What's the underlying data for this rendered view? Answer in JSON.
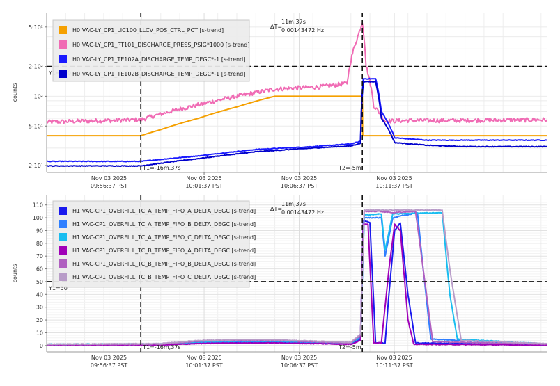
{
  "chart_data": [
    {
      "type": "line",
      "ylabel": "counts",
      "yscale": "log",
      "ylim": [
        17,
        700
      ],
      "xlim": [
        0,
        26.3
      ],
      "grid": true,
      "legend_placement": "top-left",
      "yticks": [
        {
          "value": 20,
          "label": "2·10¹"
        },
        {
          "value": 50,
          "label": "5·10¹"
        },
        {
          "value": 100,
          "label": "10²"
        },
        {
          "value": 200,
          "label": "2·10²"
        },
        {
          "value": 500,
          "label": "5·10²"
        }
      ],
      "xticks": [
        {
          "value": 3.28,
          "line1": "Nov 03 2025",
          "line2": "09:56:37 PST"
        },
        {
          "value": 8.28,
          "line1": "Nov 03 2025",
          "line2": "10:01:37 PST"
        },
        {
          "value": 13.28,
          "line1": "Nov 03 2025",
          "line2": "10:06:37 PST"
        },
        {
          "value": 18.28,
          "line1": "Nov 03 2025",
          "line2": "10:11:37 PST"
        }
      ],
      "cursors": {
        "t1": {
          "x": 4.95,
          "label": "T1=-16m,37s"
        },
        "t2": {
          "x": 16.6,
          "label": "T2=-5m"
        },
        "y1": {
          "y": 200,
          "label": "Y1=200"
        },
        "delta": {
          "label": "ΔT=",
          "line1": "11m,37s",
          "line2": "0.00143472 Hz"
        }
      },
      "series": [
        {
          "name": "H0:VAC-LY_CP1_LIC100_LLCV_POS_CTRL_PCT [s-trend]",
          "color": "#f5a000",
          "noise": 0,
          "points": [
            [
              0,
              40
            ],
            [
              4.95,
              40
            ],
            [
              6,
              46
            ],
            [
              8,
              60
            ],
            [
              10,
              78
            ],
            [
              12,
              100
            ],
            [
              16.6,
              100
            ],
            [
              16.62,
              40
            ],
            [
              26.3,
              40
            ]
          ]
        },
        {
          "name": "H0:VAC-LY_CP1_PT101_DISCHARGE_PRESS_PSIG*1000 [s-trend]",
          "color": "#f06bb4",
          "noise": 0.05,
          "points": [
            [
              0,
              55
            ],
            [
              4.95,
              58
            ],
            [
              6,
              66
            ],
            [
              8,
              82
            ],
            [
              10,
              100
            ],
            [
              12,
              118
            ],
            [
              14.5,
              125
            ],
            [
              15.8,
              135
            ],
            [
              16.0,
              230
            ],
            [
              16.4,
              420
            ],
            [
              16.6,
              560
            ],
            [
              16.8,
              200
            ],
            [
              17.2,
              80
            ],
            [
              17.8,
              56
            ],
            [
              19,
              57
            ],
            [
              22,
              57
            ],
            [
              26.3,
              58
            ]
          ]
        },
        {
          "name": "H0:VAC-LY_CP1_TE102A_DISCHARGE_TEMP_DEGC*-1 [s-trend]",
          "color": "#1a1aff",
          "noise": 0.008,
          "points": [
            [
              0,
              22
            ],
            [
              4.95,
              22
            ],
            [
              8,
              25
            ],
            [
              11,
              29
            ],
            [
              14,
              31
            ],
            [
              16.0,
              33
            ],
            [
              16.5,
              35
            ],
            [
              16.65,
              150
            ],
            [
              17.3,
              150
            ],
            [
              17.6,
              70
            ],
            [
              18.3,
              38
            ],
            [
              20,
              36
            ],
            [
              22,
              36
            ],
            [
              26.3,
              36
            ]
          ]
        },
        {
          "name": "H0:VAC-LY_CP1_TE102B_DISCHARGE_TEMP_DEGC*-1 [s-trend]",
          "color": "#0000cc",
          "noise": 0.008,
          "points": [
            [
              0,
              19.8
            ],
            [
              4.95,
              19.8
            ],
            [
              8,
              23.5
            ],
            [
              11,
              27.5
            ],
            [
              14,
              30
            ],
            [
              16.0,
              31.5
            ],
            [
              16.5,
              33.5
            ],
            [
              16.65,
              140
            ],
            [
              17.3,
              140
            ],
            [
              17.6,
              60
            ],
            [
              18.3,
              34
            ],
            [
              20,
              32
            ],
            [
              22,
              31
            ],
            [
              26.3,
              31
            ]
          ]
        }
      ]
    },
    {
      "type": "line",
      "ylabel": "counts",
      "yscale": "linear",
      "ylim": [
        -5,
        118
      ],
      "xlim": [
        0,
        26.3
      ],
      "grid": true,
      "legend_placement": "top-left",
      "yticks": [
        {
          "value": 0,
          "label": "0"
        },
        {
          "value": 10,
          "label": "10"
        },
        {
          "value": 20,
          "label": "20"
        },
        {
          "value": 30,
          "label": "30"
        },
        {
          "value": 40,
          "label": "40"
        },
        {
          "value": 50,
          "label": "50"
        },
        {
          "value": 60,
          "label": "60"
        },
        {
          "value": 70,
          "label": "70"
        },
        {
          "value": 80,
          "label": "80"
        },
        {
          "value": 90,
          "label": "90"
        },
        {
          "value": 100,
          "label": "100"
        },
        {
          "value": 110,
          "label": "110"
        }
      ],
      "xticks": [
        {
          "value": 3.28,
          "line1": "Nov 03 2025",
          "line2": "09:56:37 PST"
        },
        {
          "value": 8.28,
          "line1": "Nov 03 2025",
          "line2": "10:01:37 PST"
        },
        {
          "value": 13.28,
          "line1": "Nov 03 2025",
          "line2": "10:06:37 PST"
        },
        {
          "value": 18.28,
          "line1": "Nov 03 2025",
          "line2": "10:11:37 PST"
        }
      ],
      "cursors": {
        "t1": {
          "x": 4.95,
          "label": "T1=-16m,37s"
        },
        "t2": {
          "x": 16.6,
          "label": "T2=-5m"
        },
        "y1": {
          "y": 50,
          "label": "Y1=50"
        },
        "delta": {
          "label": "ΔT=",
          "line1": "11m,37s",
          "line2": "0.00143472 Hz"
        }
      },
      "series": [
        {
          "name": "H1:VAC-CP1_OVERFILL_TC_A_TEMP_FIFO_A_DELTA_DEGC [s-trend]",
          "color": "#1a1aee",
          "noise": 0.3,
          "points": [
            [
              0,
              0.5
            ],
            [
              6,
              0.6
            ],
            [
              8,
              2
            ],
            [
              10,
              2.5
            ],
            [
              12,
              2.5
            ],
            [
              14,
              2
            ],
            [
              16,
              1.5
            ],
            [
              16.5,
              5
            ],
            [
              16.65,
              98
            ],
            [
              17.0,
              96
            ],
            [
              17.3,
              2
            ],
            [
              17.8,
              2
            ],
            [
              18.0,
              40
            ],
            [
              18.3,
              90
            ],
            [
              18.6,
              96
            ],
            [
              19.0,
              40
            ],
            [
              19.4,
              2
            ],
            [
              26.3,
              0.5
            ]
          ]
        },
        {
          "name": "H1:VAC-CP1_OVERFILL_TC_A_TEMP_FIFO_B_DELTA_DEGC [s-trend]",
          "color": "#2f7fff",
          "noise": 0.3,
          "points": [
            [
              0,
              0.5
            ],
            [
              6,
              0.8
            ],
            [
              8,
              2.5
            ],
            [
              10,
              3
            ],
            [
              12,
              3
            ],
            [
              14,
              2.5
            ],
            [
              16,
              1.8
            ],
            [
              16.5,
              6
            ],
            [
              16.7,
              100
            ],
            [
              17.6,
              100
            ],
            [
              17.8,
              70
            ],
            [
              18.2,
              100
            ],
            [
              19.5,
              104
            ],
            [
              19.8,
              60
            ],
            [
              20.2,
              5
            ],
            [
              26.3,
              0.8
            ]
          ]
        },
        {
          "name": "H1:VAC-CP1_OVERFILL_TC_A_TEMP_FIFO_C_DELTA_DEGC [s-trend]",
          "color": "#19bdf0",
          "noise": 0.3,
          "points": [
            [
              0,
              1
            ],
            [
              6,
              1.2
            ],
            [
              8,
              3
            ],
            [
              10,
              3.5
            ],
            [
              12,
              3.5
            ],
            [
              14,
              3
            ],
            [
              16,
              2
            ],
            [
              16.5,
              7
            ],
            [
              16.7,
              102
            ],
            [
              17.6,
              103
            ],
            [
              17.8,
              75
            ],
            [
              18.2,
              103
            ],
            [
              20.8,
              104
            ],
            [
              21.2,
              40
            ],
            [
              21.6,
              5
            ],
            [
              26.3,
              1.2
            ]
          ]
        },
        {
          "name": "H1:VAC-CP1_OVERFILL_TC_B_TEMP_FIFO_A_DELTA_DEGC [s-trend]",
          "color": "#a000b8",
          "noise": 0.3,
          "points": [
            [
              0,
              0.3
            ],
            [
              6,
              0.4
            ],
            [
              8,
              1.5
            ],
            [
              10,
              2
            ],
            [
              12,
              2
            ],
            [
              14,
              1.5
            ],
            [
              16,
              1
            ],
            [
              16.5,
              4
            ],
            [
              16.65,
              95
            ],
            [
              16.9,
              95
            ],
            [
              17.2,
              2
            ],
            [
              17.6,
              2
            ],
            [
              18.0,
              60
            ],
            [
              18.3,
              95
            ],
            [
              18.6,
              90
            ],
            [
              19.0,
              20
            ],
            [
              19.3,
              1
            ],
            [
              26.3,
              0.3
            ]
          ]
        },
        {
          "name": "H1:VAC-CP1_OVERFILL_TC_B_TEMP_FIFO_B_DELTA_DEGC [s-trend]",
          "color": "#b060c0",
          "noise": 0.3,
          "points": [
            [
              0,
              0.8
            ],
            [
              6,
              1
            ],
            [
              8,
              3.5
            ],
            [
              10,
              4
            ],
            [
              12,
              4
            ],
            [
              14,
              3
            ],
            [
              16,
              2
            ],
            [
              16.5,
              8
            ],
            [
              16.7,
              105
            ],
            [
              17.5,
              105
            ],
            [
              18.2,
              104
            ],
            [
              19.4,
              105
            ],
            [
              19.8,
              60
            ],
            [
              20.3,
              3
            ],
            [
              26.3,
              1
            ]
          ]
        },
        {
          "name": "H1:VAC-CP1_OVERFILL_TC_B_TEMP_FIFO_C_DELTA_DEGC [s-trend]",
          "color": "#b89cc8",
          "noise": 0.3,
          "points": [
            [
              0,
              1
            ],
            [
              6,
              1.5
            ],
            [
              8,
              4
            ],
            [
              10,
              4.5
            ],
            [
              12,
              4.5
            ],
            [
              14,
              3.5
            ],
            [
              16,
              2.5
            ],
            [
              16.5,
              9
            ],
            [
              16.7,
              106
            ],
            [
              18.5,
              106
            ],
            [
              20.8,
              106
            ],
            [
              21.2,
              60
            ],
            [
              21.8,
              4
            ],
            [
              26.3,
              1.5
            ]
          ]
        }
      ]
    }
  ]
}
